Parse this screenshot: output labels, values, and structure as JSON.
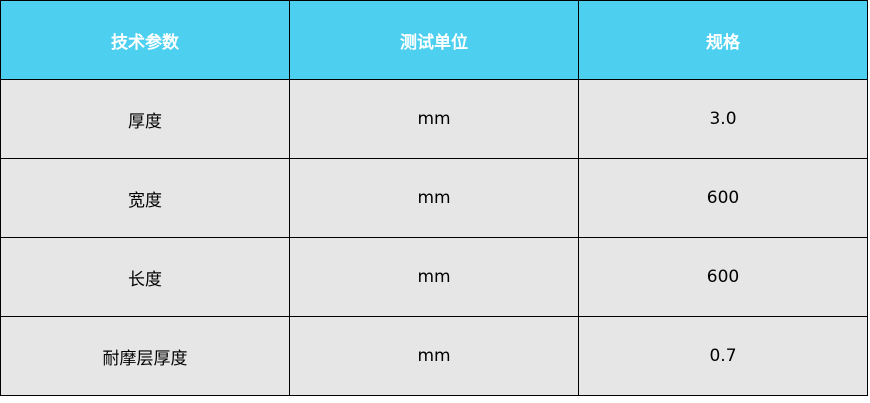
{
  "table": {
    "headers": [
      "技术参数",
      "测试单位",
      "规格"
    ],
    "rows": [
      [
        "厚度",
        "mm",
        "3.0"
      ],
      [
        "宽度",
        "mm",
        "600"
      ],
      [
        "长度",
        "mm",
        "600"
      ],
      [
        "耐摩层厚度",
        "mm",
        "0.7"
      ]
    ]
  },
  "colors": {
    "header_bg": "#4dd0f0",
    "header_text": "#ffffff",
    "row_bg": "#e6e6e6"
  }
}
